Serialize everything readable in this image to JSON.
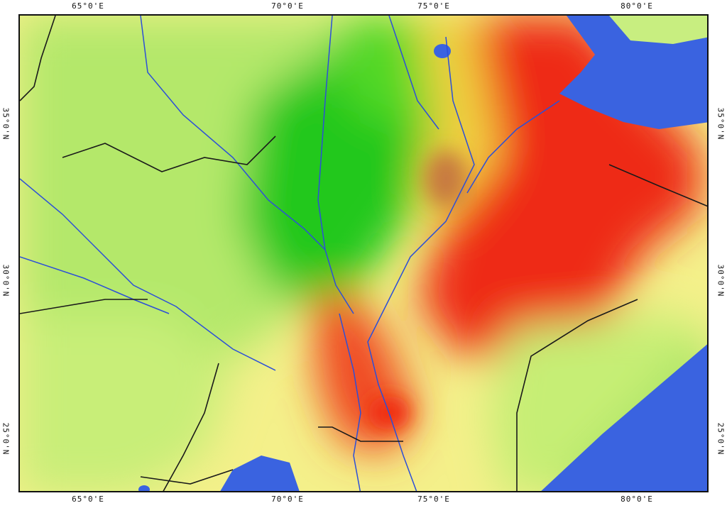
{
  "map": {
    "colors": {
      "sea": "#3a63e0",
      "lowland": "#f4f08a",
      "plain_green": "#b4e86a",
      "forest_green": "#24c81c",
      "highland_yellow": "#f0d040",
      "mountain_red": "#ee2a18",
      "river": "#2c4fd8",
      "border": "#1a1a1a"
    },
    "graticule": {
      "top": [
        "65°0'E",
        "70°0'E",
        "75°0'E",
        "80°0'E"
      ],
      "bottom": [
        "65°0'E",
        "70°0'E",
        "75°0'E",
        "80°0'E"
      ],
      "left": [
        "35°0'N",
        "30°0'N",
        "25°0'N"
      ],
      "right": [
        "35°0'N",
        "30°0'N",
        "25°0'N"
      ]
    }
  }
}
